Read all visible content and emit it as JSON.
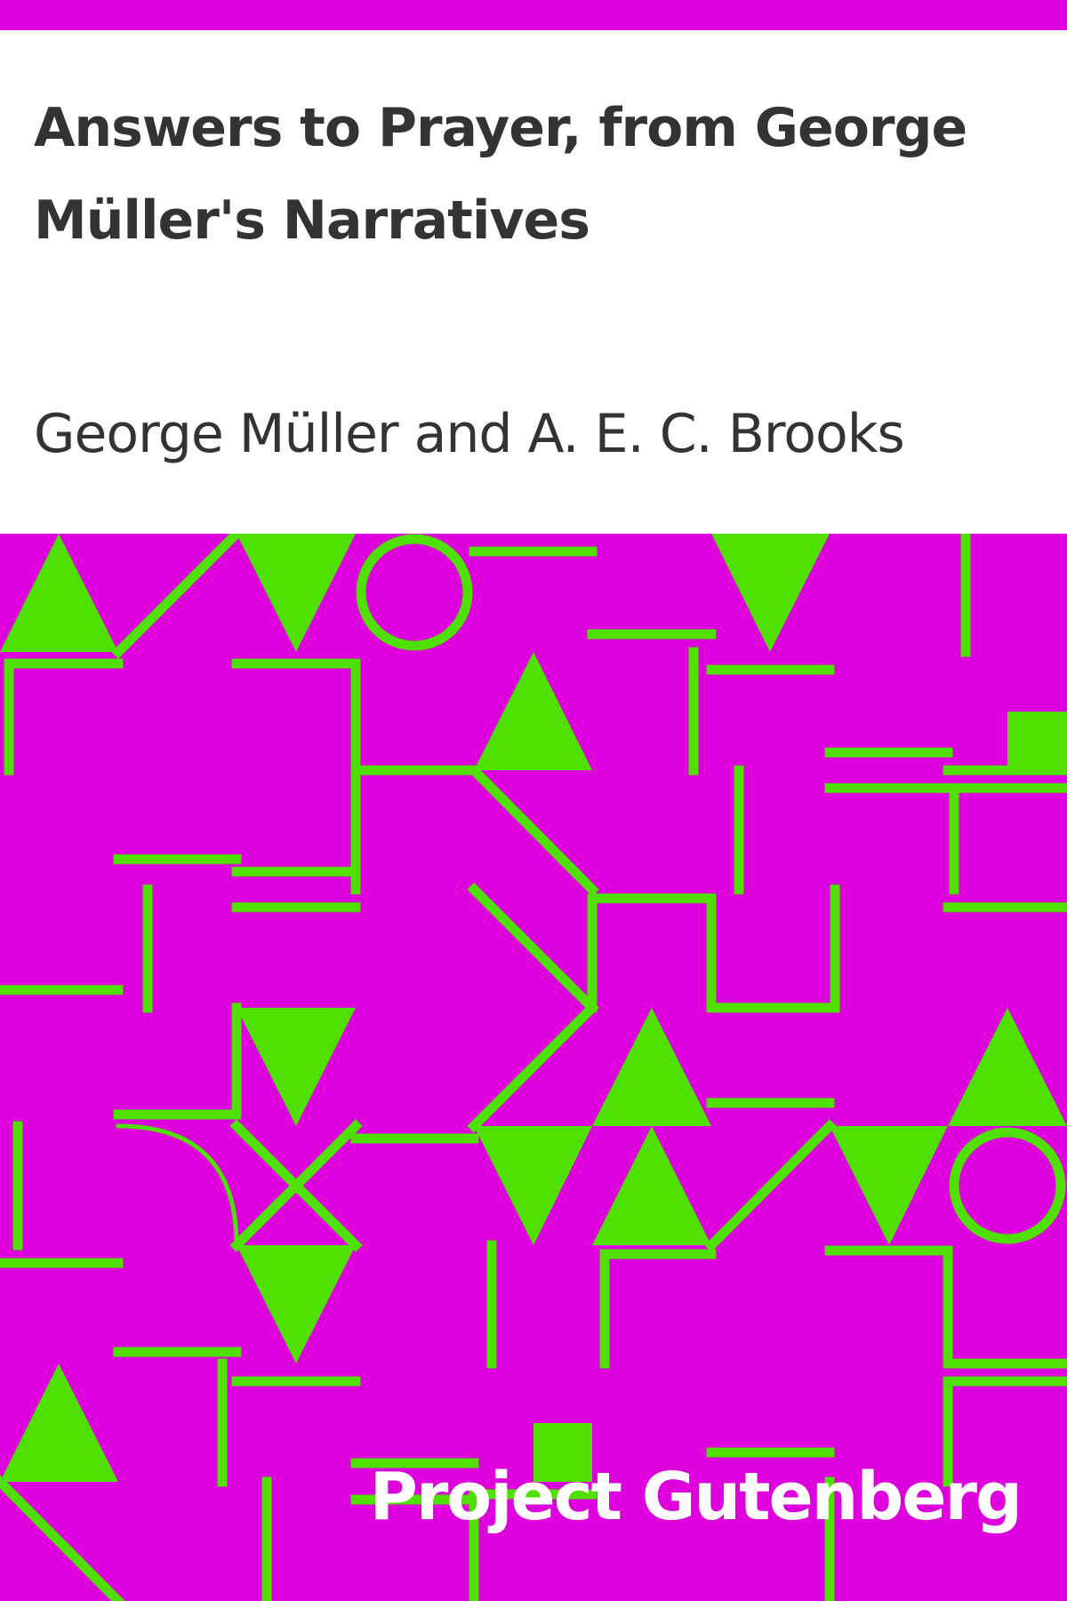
{
  "book": {
    "title": "Answers to Prayer, from George Müller's Narratives",
    "author": "George Müller and A. E. C. Brooks",
    "publisher": "Project Gutenberg"
  },
  "colors": {
    "background": "#dd00dd",
    "pattern": "#4fe000",
    "title_area": "#ffffff",
    "text": "#333333",
    "publisher_text": "#ffffff"
  }
}
